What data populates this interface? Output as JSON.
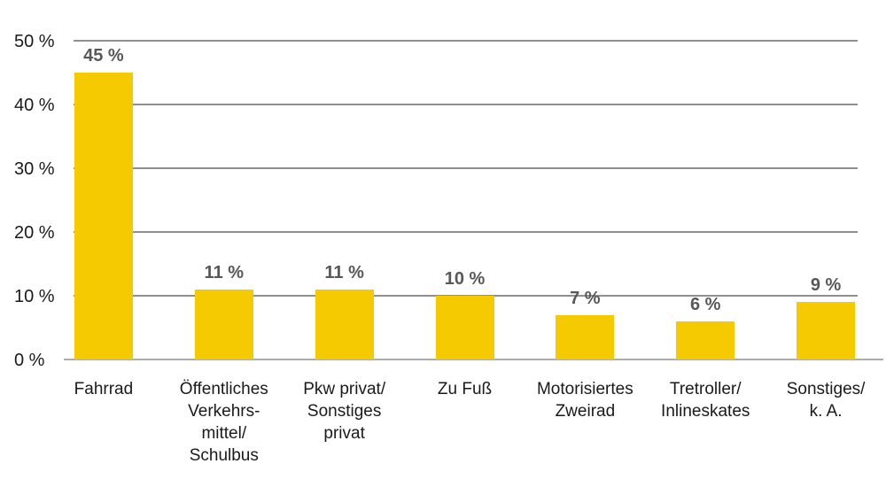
{
  "chart_data": {
    "type": "bar",
    "title": "",
    "xlabel": "",
    "ylabel": "",
    "categories": [
      "Fahrrad",
      "Öffentliches\nVerkehrs-\nmittel/\nSchulbus",
      "Pkw privat/\nSonstiges\nprivat",
      "Zu Fuß",
      "Motorisiertes\nZweirad",
      "Tretroller/\nInlineskates",
      "Sonstiges/\nk. A."
    ],
    "values": [
      45,
      11,
      11,
      10,
      7,
      6,
      9
    ],
    "data_labels": [
      "45 %",
      "11 %",
      "11 %",
      "10 %",
      "7 %",
      "6 %",
      "9 %"
    ],
    "y_tick_labels": [
      "50 %",
      "40 %",
      "30 %",
      "20 %",
      "10 %",
      "0 %"
    ],
    "y_tick_values": [
      50,
      40,
      30,
      20,
      10,
      0
    ],
    "ylim": [
      0,
      50
    ],
    "grid": "horizontal",
    "legend": null,
    "colors": {
      "bar": "#f6ca00",
      "gridline": "#8f8f8f",
      "baseline": "#ababab",
      "axis_text": "#1a1a1a",
      "data_label_text": "#58585a",
      "background": "#ffffff"
    }
  }
}
